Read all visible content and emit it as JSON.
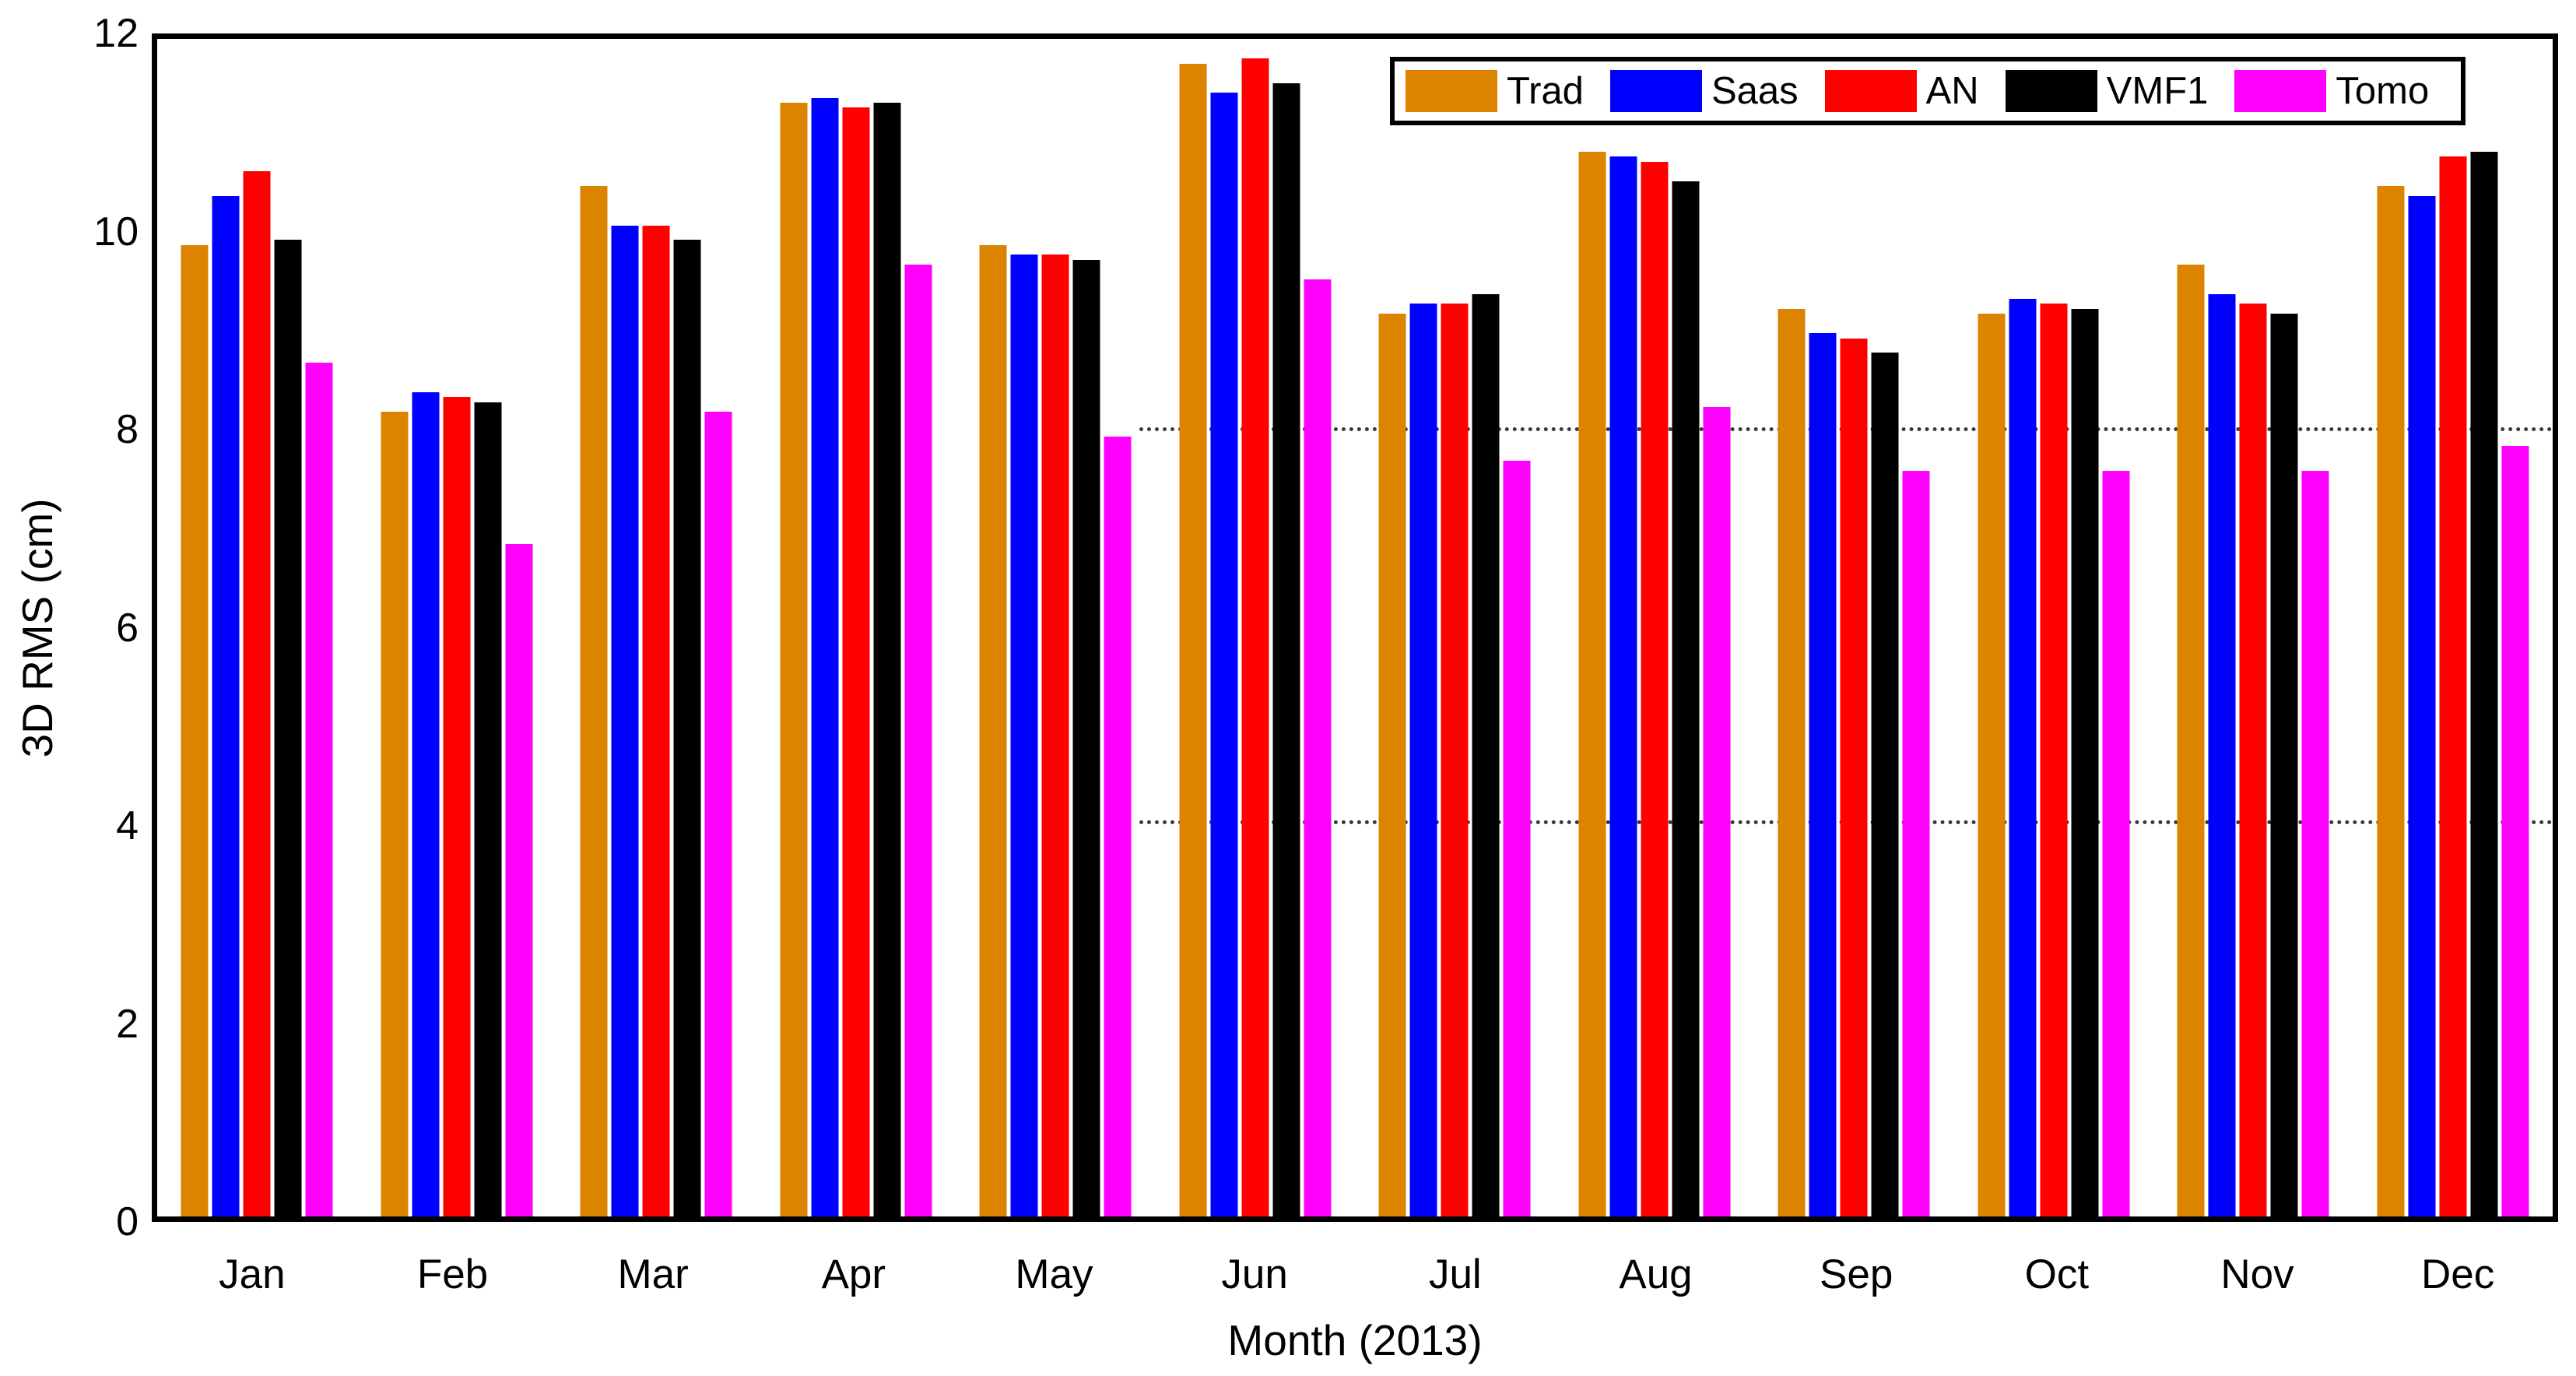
{
  "chart_data": {
    "type": "bar",
    "title": "",
    "xlabel": "Month (2013)",
    "ylabel": "3D RMS (cm)",
    "ylim": [
      0,
      12
    ],
    "yticks": [
      0,
      2,
      4,
      6,
      8,
      10,
      12
    ],
    "grid": "partial dotted reference lines at y=4 and y=8, right portion of plot only",
    "legend_position": "top-right-inside",
    "categories": [
      "Jan",
      "Feb",
      "Mar",
      "Apr",
      "May",
      "Jun",
      "Jul",
      "Aug",
      "Sep",
      "Oct",
      "Nov",
      "Dec"
    ],
    "series": [
      {
        "name": "Trad",
        "color": "#DC8400",
        "values": [
          9.9,
          8.2,
          10.5,
          11.35,
          9.9,
          11.75,
          9.2,
          10.85,
          9.25,
          9.2,
          9.7,
          10.5
        ]
      },
      {
        "name": "Saas",
        "color": "#0000FF",
        "values": [
          10.4,
          8.4,
          10.1,
          11.4,
          9.8,
          11.45,
          9.3,
          10.8,
          9.0,
          9.35,
          9.4,
          10.4
        ]
      },
      {
        "name": "AN",
        "color": "#FF0000",
        "values": [
          10.65,
          8.35,
          10.1,
          11.3,
          9.8,
          11.8,
          9.3,
          10.75,
          8.95,
          9.3,
          9.3,
          10.8
        ]
      },
      {
        "name": "VMF1",
        "color": "#000000",
        "values": [
          9.95,
          8.3,
          9.95,
          11.35,
          9.75,
          11.55,
          9.4,
          10.55,
          8.8,
          9.25,
          9.2,
          10.85
        ]
      },
      {
        "name": "Tomo",
        "color": "#FF00FF",
        "values": [
          8.7,
          6.85,
          8.2,
          9.7,
          7.95,
          9.55,
          7.7,
          8.25,
          7.6,
          7.6,
          7.6,
          7.85
        ]
      }
    ],
    "reference_lines": [
      {
        "y": 8,
        "style": "dotted",
        "color": "#3a3a3a",
        "x_start_fraction": 0.41
      },
      {
        "y": 4,
        "style": "dotted",
        "color": "#3a3a3a",
        "x_start_fraction": 0.41
      }
    ]
  }
}
